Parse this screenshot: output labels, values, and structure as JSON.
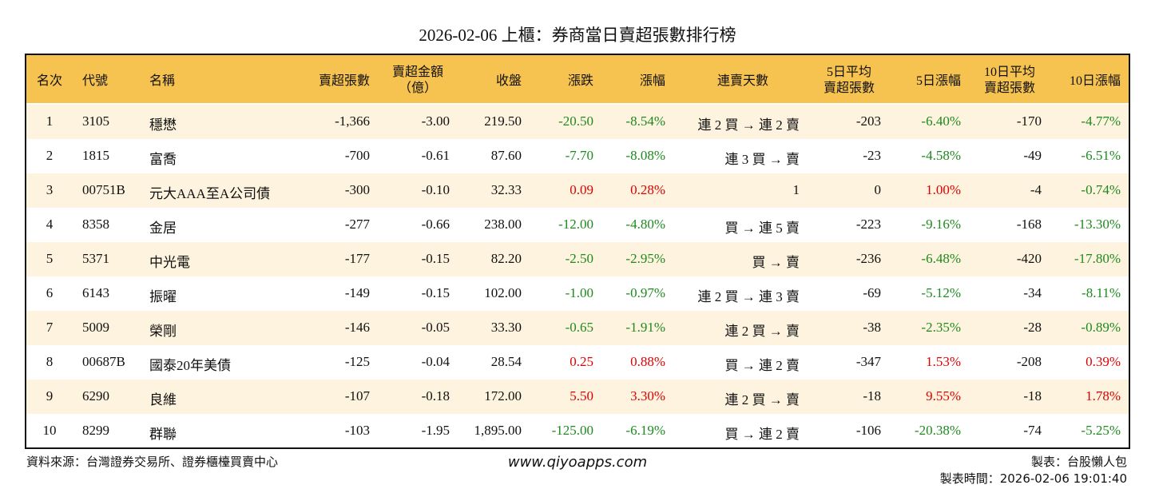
{
  "title": "2026-02-06 上櫃：券商當日賣超張數排行榜",
  "table": {
    "header": [
      "名次",
      "代號",
      "名稱",
      "賣超張數",
      [
        "賣超金額",
        "（億）"
      ],
      "收盤",
      "漲跌",
      "漲幅",
      "連賣天數",
      [
        "5日平均",
        "賣超張數"
      ],
      "5日漲幅",
      [
        "10日平均",
        "賣超張數"
      ],
      "10日漲幅"
    ],
    "rows": [
      [
        "1",
        "3105",
        "穩懋",
        "-1,366",
        "-3.00",
        "219.50",
        "-20.50",
        "-8.54%",
        "連 2 買 → 連 2 賣",
        "-203",
        "-6.40%",
        "-170",
        "-4.77%"
      ],
      [
        "2",
        "1815",
        "富喬",
        "-700",
        "-0.61",
        "87.60",
        "-7.70",
        "-8.08%",
        "連 3 買 → 賣",
        "-23",
        "-4.58%",
        "-49",
        "-6.51%"
      ],
      [
        "3",
        "00751B",
        "元大AAA至A公司債",
        "-300",
        "-0.10",
        "32.33",
        "0.09",
        "0.28%",
        "1",
        "0",
        "1.00%",
        "-4",
        "-0.74%"
      ],
      [
        "4",
        "8358",
        "金居",
        "-277",
        "-0.66",
        "238.00",
        "-12.00",
        "-4.80%",
        "買 → 連 5 賣",
        "-223",
        "-9.16%",
        "-168",
        "-13.30%"
      ],
      [
        "5",
        "5371",
        "中光電",
        "-177",
        "-0.15",
        "82.20",
        "-2.50",
        "-2.95%",
        "買 → 賣",
        "-236",
        "-6.48%",
        "-420",
        "-17.80%"
      ],
      [
        "6",
        "6143",
        "振曜",
        "-149",
        "-0.15",
        "102.00",
        "-1.00",
        "-0.97%",
        "連 2 買 → 連 3 賣",
        "-69",
        "-5.12%",
        "-34",
        "-8.11%"
      ],
      [
        "7",
        "5009",
        "榮剛",
        "-146",
        "-0.05",
        "33.30",
        "-0.65",
        "-1.91%",
        "連 2 買 → 賣",
        "-38",
        "-2.35%",
        "-28",
        "-0.89%"
      ],
      [
        "8",
        "00687B",
        "國泰20年美債",
        "-125",
        "-0.04",
        "28.54",
        "0.25",
        "0.88%",
        "買 → 連 2 賣",
        "-347",
        "1.53%",
        "-208",
        "0.39%"
      ],
      [
        "9",
        "6290",
        "良維",
        "-107",
        "-0.18",
        "172.00",
        "5.50",
        "3.30%",
        "連 2 買 → 賣",
        "-18",
        "9.55%",
        "-18",
        "1.78%"
      ],
      [
        "10",
        "8299",
        "群聯",
        "-103",
        "-1.95",
        "1,895.00",
        "-125.00",
        "-6.19%",
        "買 → 連 2 賣",
        "-106",
        "-20.38%",
        "-74",
        "-5.25%"
      ]
    ]
  },
  "footer": {
    "source": "資料來源：台灣證券交易所、證券櫃檯買賣中心",
    "website": "www.qiyoapps.com",
    "maker": "製表：台股懶人包",
    "time": "製表時間：2026-02-06 19:01:40"
  }
}
